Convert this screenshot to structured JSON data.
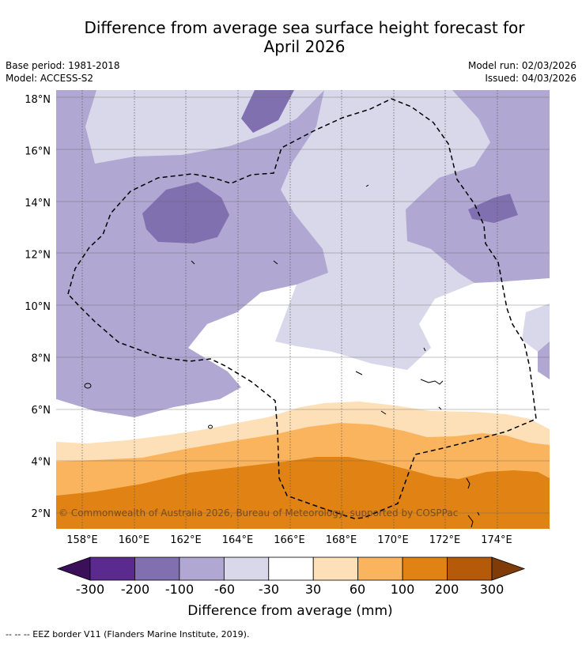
{
  "header": {
    "title_line1": "Difference from average sea surface height forecast for",
    "title_line2": "April 2026",
    "base_period": "Base period: 1981-2018",
    "model": "Model: ACCESS-S2",
    "model_run": "Model run: 02/03/2026",
    "issued": "Issued: 04/03/2026"
  },
  "map": {
    "copyright": "© Commonwealth of Australia 2026, Bureau of Meteorology, supported by COSPPac"
  },
  "chart_data": {
    "type": "heatmap",
    "xlabel": "",
    "ylabel": "",
    "x_range_deg": [
      157.0,
      176.0
    ],
    "y_range_deg": [
      1.5,
      18.5
    ],
    "x_ticks": [
      158,
      160,
      162,
      164,
      166,
      168,
      170,
      172,
      174
    ],
    "x_tick_labels": [
      "158°E",
      "160°E",
      "162°E",
      "164°E",
      "166°E",
      "168°E",
      "170°E",
      "172°E",
      "174°E"
    ],
    "y_ticks": [
      2,
      4,
      6,
      8,
      10,
      12,
      14,
      16,
      18
    ],
    "y_tick_labels": [
      "2°N",
      "4°N",
      "6°N",
      "8°N",
      "10°N",
      "12°N",
      "14°N",
      "16°N",
      "18°N"
    ],
    "colorbar": {
      "title": "Difference from average (mm)",
      "boundaries": [
        -300,
        -200,
        -100,
        -60,
        -30,
        30,
        60,
        100,
        200,
        300
      ],
      "boundary_labels": [
        "-300",
        "-200",
        "-100",
        "-60",
        "-30",
        "30",
        "60",
        "100",
        "200",
        "300"
      ],
      "colors": [
        "#5a2a8e",
        "#8070b0",
        "#b0a8d2",
        "#d8d8ea",
        "#ffffff",
        "#fde0b8",
        "#fab45e",
        "#e08214",
        "#b55a08"
      ],
      "under_color": "#3b0f5a",
      "over_color": "#7f3b08"
    }
  },
  "footer": {
    "eez_note": "-- -- -- EEZ border V11 (Flanders Marine Institute, 2019)."
  }
}
